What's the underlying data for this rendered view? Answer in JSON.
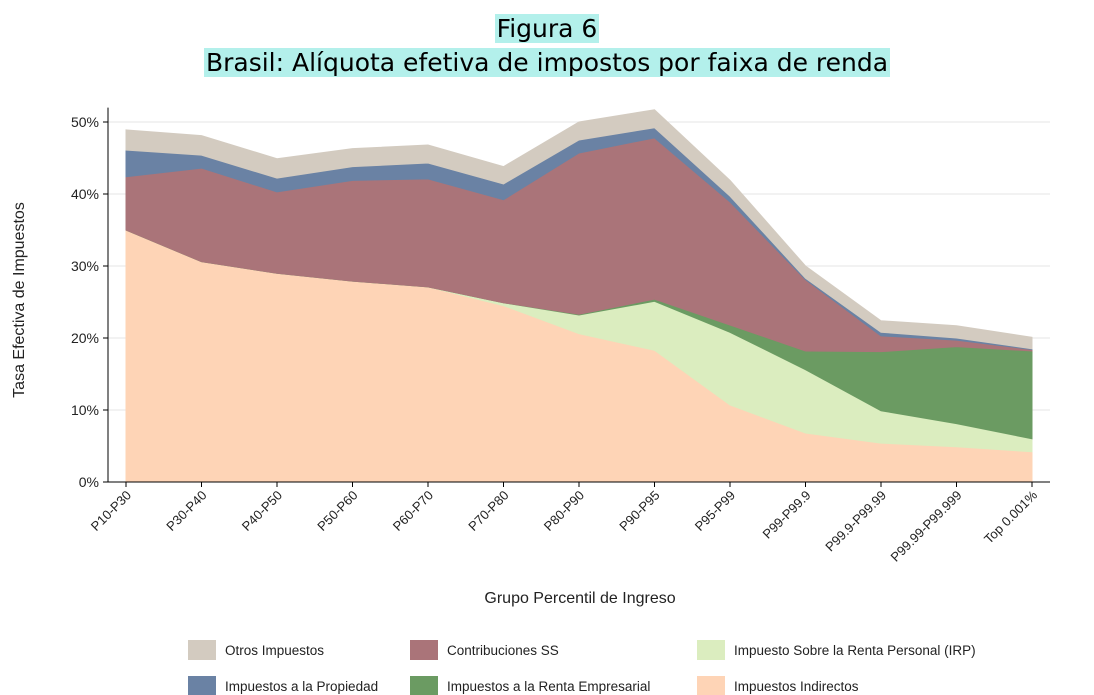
{
  "chart_data": {
    "type": "stacked_area",
    "title": "Figura 6",
    "subtitle": "Brasil: Alíquota efetiva de impostos por faixa de renda",
    "x_label": "Grupo Percentil de Ingreso",
    "y_label": "Tasa Efectiva de Impuestos",
    "categories": [
      "P10-P30",
      "P30-P40",
      "P40-P50",
      "P50-P60",
      "P60-P70",
      "P70-P80",
      "P80-P90",
      "P90-P95",
      "P95-P99",
      "P99-P99.9",
      "P99.9-P99.99",
      "P99.99-P99.999",
      "Top 0.001%"
    ],
    "series": [
      {
        "name": "Otros Impuestos",
        "color": "#d3cbc0",
        "values": [
          2.8,
          2.7,
          2.7,
          2.5,
          2.5,
          2.4,
          2.5,
          2.5,
          2.2,
          1.7,
          1.6,
          1.7,
          1.6
        ]
      },
      {
        "name": "Contribuciones SS",
        "color": "#aa7479",
        "values": [
          7.4,
          13.0,
          11.3,
          14.0,
          15.0,
          14.3,
          22.4,
          22.4,
          17.1,
          9.9,
          2.2,
          0.9,
          0.2
        ]
      },
      {
        "name": "Impuesto Sobre la Renta Personal (IRP)",
        "color": "#dbedbf",
        "values": [
          0,
          0,
          0,
          0,
          0,
          0.4,
          2.6,
          6.8,
          10.1,
          8.8,
          4.5,
          3.2,
          1.8
        ]
      },
      {
        "name": "Impuestos a la Propiedad",
        "color": "#6a82a4",
        "values": [
          3.7,
          1.8,
          1.9,
          1.9,
          2.2,
          2.2,
          1.8,
          1.4,
          0.8,
          0.2,
          0.5,
          0.3,
          0.1
        ]
      },
      {
        "name": "Impuestos a la Renta Empresarial",
        "color": "#6b9b62",
        "values": [
          0,
          0,
          0,
          0,
          0,
          0,
          0.1,
          0.3,
          1.0,
          2.6,
          8.2,
          10.7,
          12.2
        ]
      },
      {
        "name": "Impuestos Indirectos",
        "color": "#fed4b6",
        "values": [
          35.0,
          30.6,
          29.0,
          27.9,
          27.1,
          24.5,
          20.6,
          18.3,
          10.7,
          6.8,
          5.4,
          4.9,
          4.2
        ]
      }
    ],
    "ylim": [
      0,
      52
    ],
    "yticks": [
      {
        "value": 0,
        "label": "0%"
      },
      {
        "value": 10,
        "label": "10%"
      },
      {
        "value": 20,
        "label": "20%"
      },
      {
        "value": 30,
        "label": "30%"
      },
      {
        "value": 40,
        "label": "40%"
      },
      {
        "value": 50,
        "label": "50%"
      }
    ],
    "grid": true
  }
}
